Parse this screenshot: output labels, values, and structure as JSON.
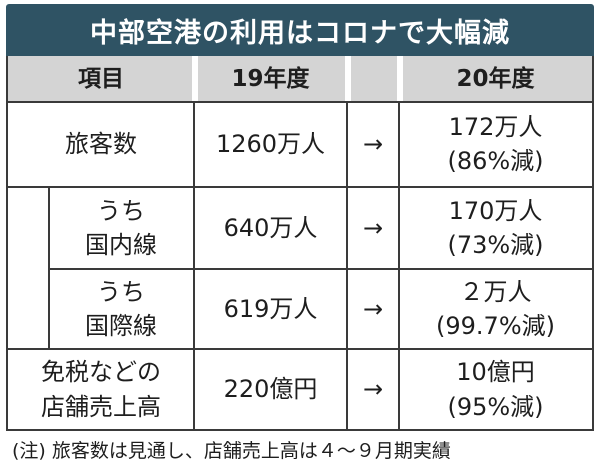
{
  "title": "中部空港の利用はコロナで大幅減",
  "headers": {
    "item": "項目",
    "year19": "19年度",
    "arrow": "",
    "year20": "20年度"
  },
  "rows": [
    {
      "item": [
        "旅客数"
      ],
      "y19": "1260万人",
      "arrow": "→",
      "y20": [
        "172万人",
        "(86%減)"
      ]
    },
    {
      "item": [
        "うち",
        "国内線"
      ],
      "y19": "640万人",
      "arrow": "→",
      "y20": [
        "170万人",
        "(73%減)"
      ]
    },
    {
      "item": [
        "うち",
        "国際線"
      ],
      "y19": "619万人",
      "arrow": "→",
      "y20": [
        "２万人",
        "(99.7%減)"
      ]
    },
    {
      "item": [
        "免税などの",
        "店舗売上高"
      ],
      "y19": "220億円",
      "arrow": "→",
      "y20": [
        "10億円",
        "(95%減)"
      ]
    }
  ],
  "note": "(注) 旅客数は見通し、店舗売上高は４～９月期実績"
}
